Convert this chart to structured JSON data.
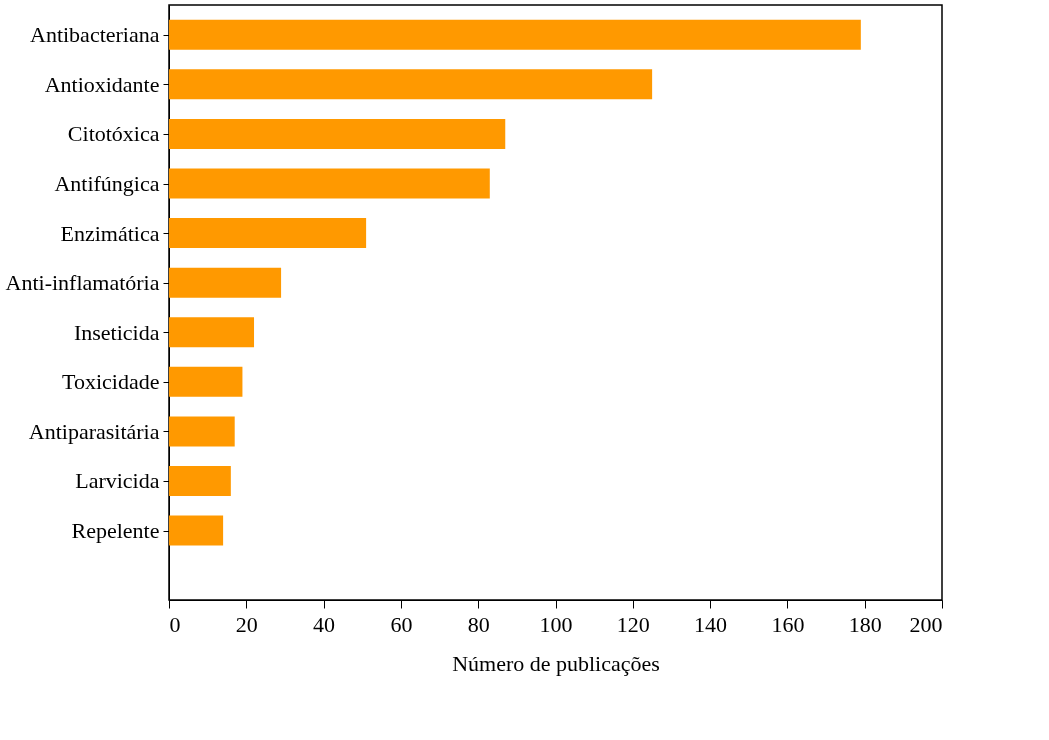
{
  "chart_data": {
    "type": "bar",
    "orientation": "horizontal",
    "xlabel": "Número de publicações",
    "categories": [
      "Antibacteriana",
      "Antioxidante",
      "Citotóxica",
      "Antifúngica",
      "Enzimática",
      "Anti-inflamatória",
      "Inseticida",
      "Toxicidade",
      "Antiparasitária",
      "Larvicida",
      "Repelente"
    ],
    "values": [
      179,
      125,
      87,
      83,
      51,
      29,
      22,
      19,
      17,
      16,
      14
    ],
    "color": "#ff9900",
    "xlim": [
      0,
      200
    ],
    "xticks": [
      0,
      20,
      40,
      60,
      80,
      100,
      120,
      140,
      160,
      180,
      200
    ],
    "grid": false
  }
}
